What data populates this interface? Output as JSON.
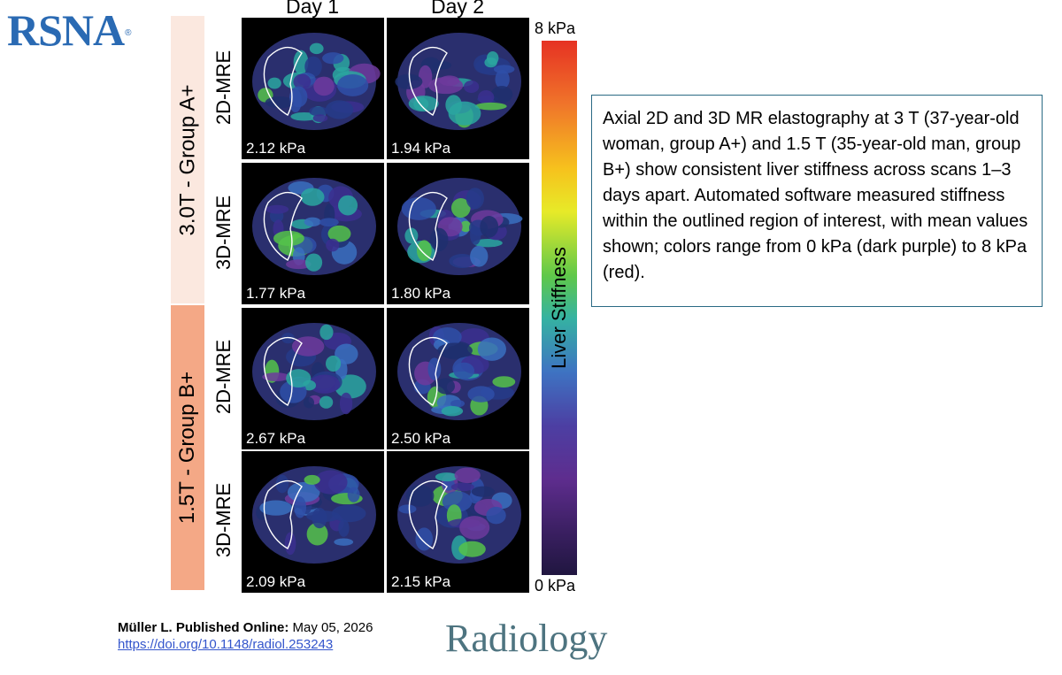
{
  "logo": {
    "text": "RSNA",
    "mark": "®"
  },
  "columns": [
    "Day 1",
    "Day 2"
  ],
  "groups": [
    {
      "label": "3.0T - Group A+",
      "color": "#fbe8df"
    },
    {
      "label": "1.5T - Group B+",
      "color": "#f4a886"
    }
  ],
  "rows": [
    {
      "label": "2D-MRE",
      "values": [
        "2.12 kPa",
        "1.94 kPa"
      ]
    },
    {
      "label": "3D-MRE",
      "values": [
        "1.77 kPa",
        "1.80 kPa"
      ]
    },
    {
      "label": "2D-MRE",
      "values": [
        "2.67 kPa",
        "2.50 kPa"
      ]
    },
    {
      "label": "3D-MRE",
      "values": [
        "2.09 kPa",
        "2.15 kPa"
      ]
    }
  ],
  "colorbar": {
    "label": "Liver Stiffness",
    "max": "8 kPa",
    "min": "0 kPa"
  },
  "caption": "Axial 2D and 3D MR elastography at 3 T (37-year-old woman, group A+) and 1.5 T (35-year-old man, group B+) show consistent liver stiffness across scans 1–3 days apart. Automated software measured stiffness within the outlined region of interest, with mean values shown; colors range from 0 kPa (dark purple) to 8 kPa (red).",
  "citation": {
    "author": "Müller L. Published Online:",
    "date": "May 05, 2026",
    "doi": "https://doi.org/10.1148/radiol.253243"
  },
  "journal": "Radiology"
}
